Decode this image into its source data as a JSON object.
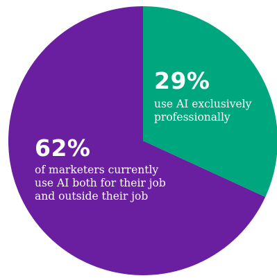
{
  "chart_data": {
    "type": "pie",
    "colors": [
      "#6a1fa0",
      "#00a77e"
    ],
    "slices": [
      {
        "value": 62,
        "percent_label": "62%",
        "description_lines": [
          "of marketers currently",
          "use AI both for their job",
          "and outside their job"
        ],
        "color": "#6a1fa0"
      },
      {
        "value": 29,
        "percent_label": "29%",
        "description_lines": [
          "use AI exclusively",
          "professionally"
        ],
        "color": "#00a77e"
      }
    ]
  }
}
